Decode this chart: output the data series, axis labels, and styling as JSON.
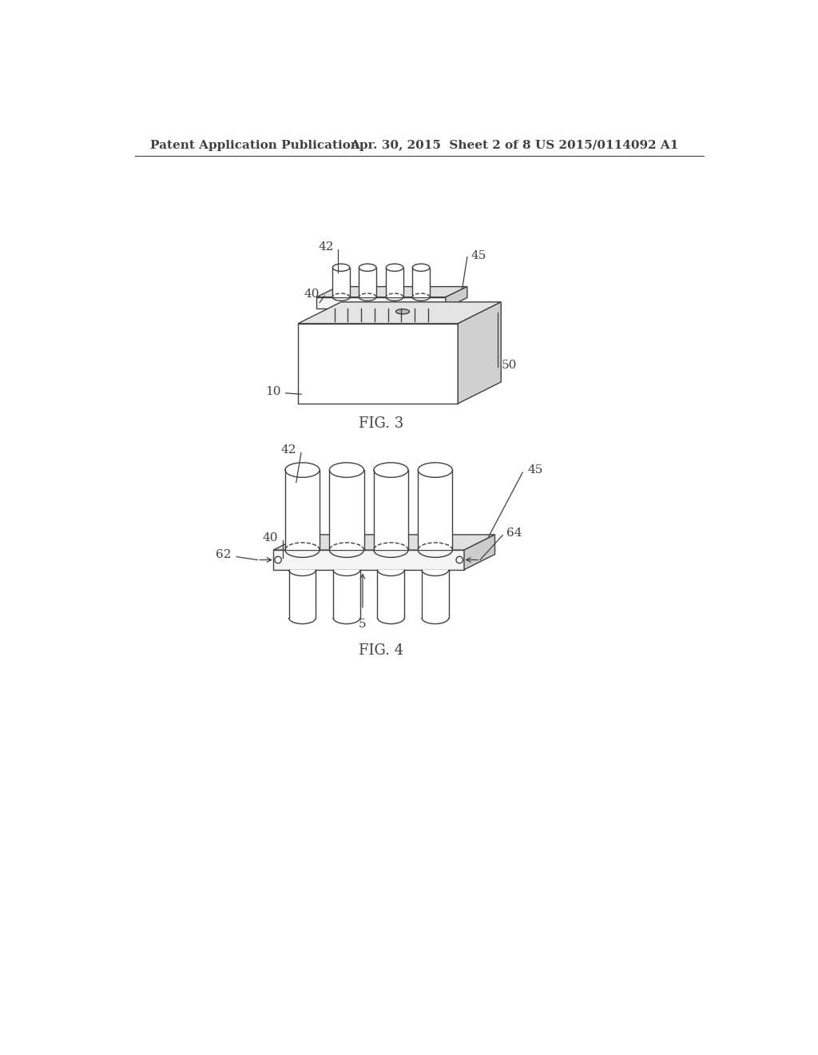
{
  "bg_color": "#ffffff",
  "line_color": "#404040",
  "header_left": "Patent Application Publication",
  "header_center": "Apr. 30, 2015  Sheet 2 of 8",
  "header_right": "US 2015/0114092 A1",
  "fig3_label": "FIG. 3",
  "fig4_label": "FIG. 4",
  "label_fontsize": 11,
  "header_fontsize": 11,
  "fig_label_fontsize": 13
}
